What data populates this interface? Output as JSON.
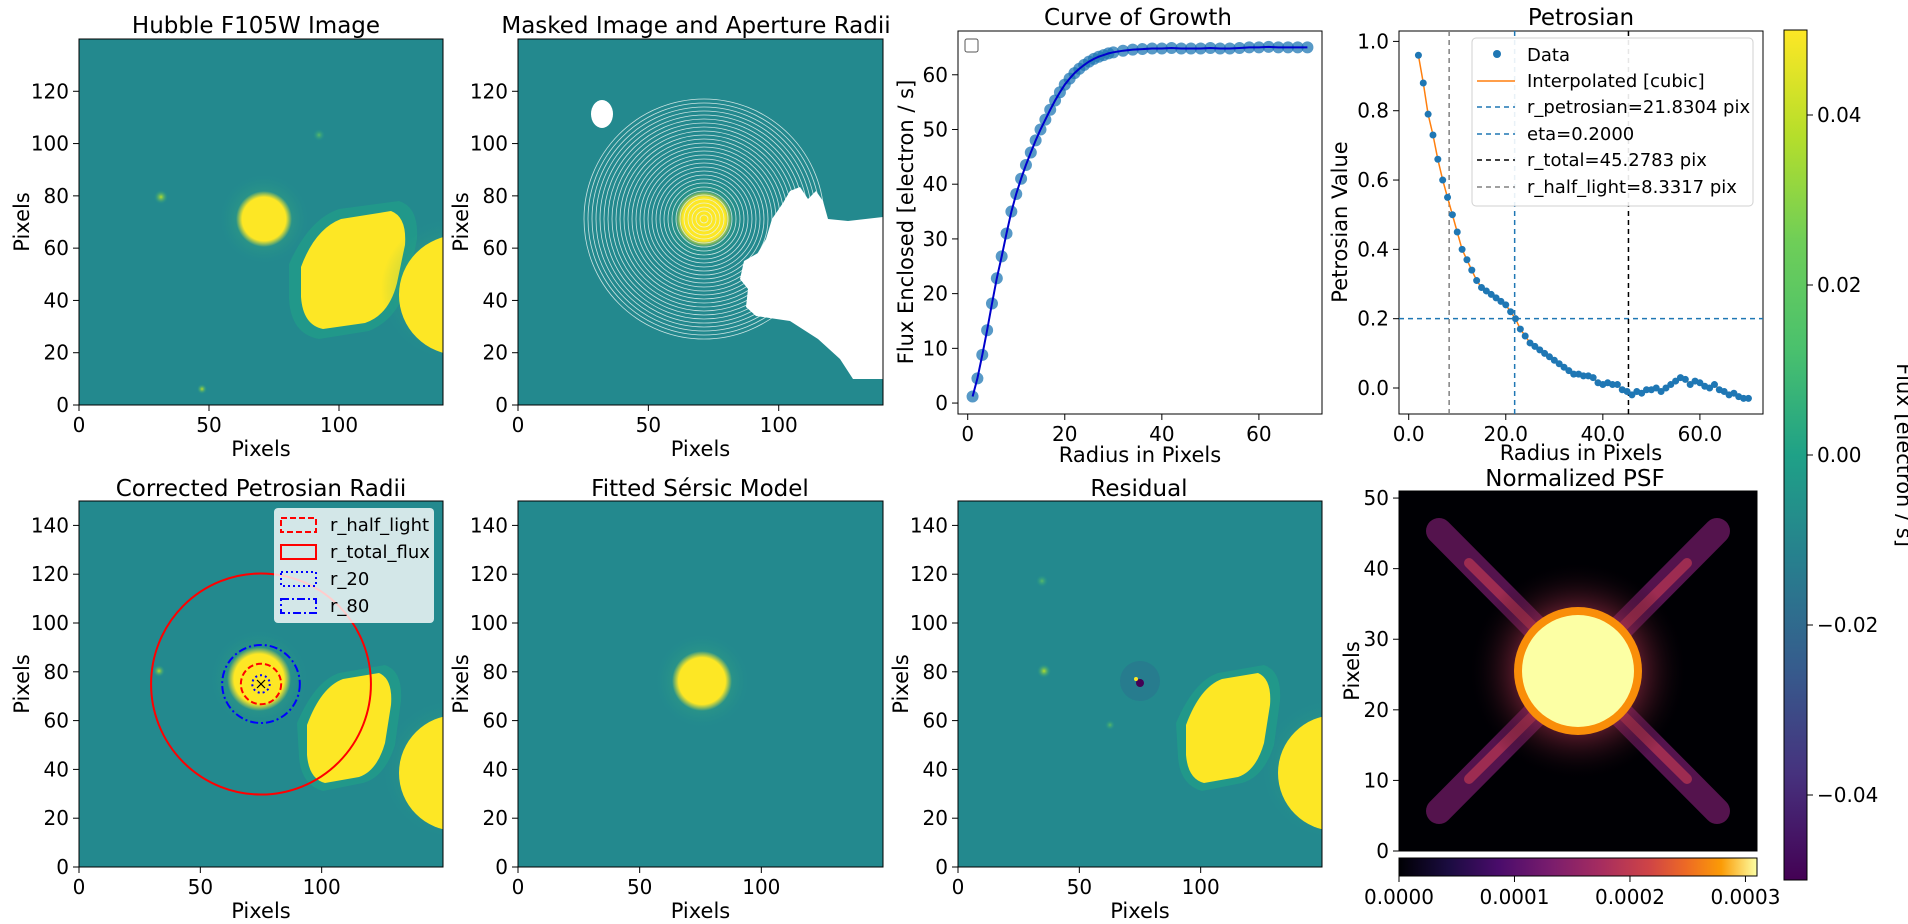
{
  "figure": {
    "colorbar_label": "Flux [electron / s]",
    "colorbar_ticks": [
      "0.04",
      "0.02",
      "0.00",
      "−0.02",
      "−0.04"
    ],
    "colorbar_values": [
      0.04,
      0.02,
      0.0,
      -0.02,
      -0.04
    ],
    "colorbar_range": [
      -0.05,
      0.05
    ],
    "psf_colorbar_ticks": [
      "0.0000",
      "0.0001",
      "0.0002",
      "0.0003"
    ],
    "psf_colorbar_values": [
      0,
      0.0001,
      0.0002,
      0.0003
    ],
    "psf_colorbar_range": [
      0,
      0.00031
    ]
  },
  "chart_data": [
    {
      "id": "p1",
      "type": "heatmap",
      "title": "Hubble F105W Image",
      "xlabel": "Pixels",
      "ylabel": "Pixels",
      "xlim": [
        0,
        140
      ],
      "ylim": [
        0,
        140
      ],
      "xticks": [
        0,
        50,
        100
      ],
      "yticks": [
        0,
        20,
        40,
        60,
        80,
        100,
        120
      ]
    },
    {
      "id": "p2",
      "type": "heatmap",
      "title": "Masked Image and Aperture Radii",
      "xlabel": "Pixels",
      "ylabel": "Pixels",
      "xlim": [
        0,
        140
      ],
      "ylim": [
        0,
        140
      ],
      "xticks": [
        0,
        50,
        100
      ],
      "yticks": [
        0,
        20,
        40,
        60,
        80,
        100,
        120
      ]
    },
    {
      "id": "p3",
      "type": "line",
      "title": "Curve of Growth",
      "xlabel": "Radius in Pixels",
      "ylabel": "Flux Enclosed [electron / s]",
      "xlim": [
        -2,
        73
      ],
      "ylim": [
        -2,
        68
      ],
      "xticks": [
        0,
        20,
        40,
        60
      ],
      "yticks": [
        0,
        10,
        20,
        30,
        40,
        50,
        60
      ],
      "x": [
        1,
        2,
        3,
        4,
        5,
        6,
        7,
        8,
        9,
        10,
        11,
        12,
        13,
        14,
        15,
        16,
        17,
        18,
        19,
        20,
        21,
        22,
        23,
        24,
        25,
        26,
        27,
        28,
        29,
        30,
        32,
        34,
        36,
        38,
        40,
        42,
        44,
        46,
        48,
        50,
        52,
        54,
        56,
        58,
        60,
        62,
        64,
        66,
        68,
        70
      ],
      "y": [
        1.2,
        4.5,
        8.8,
        13.3,
        18.2,
        22.8,
        26.8,
        31.0,
        35.0,
        38.2,
        41.0,
        43.5,
        45.8,
        48.0,
        50.0,
        51.8,
        53.6,
        55.3,
        56.8,
        58.2,
        59.3,
        60.3,
        61.1,
        61.8,
        62.4,
        62.9,
        63.3,
        63.6,
        63.9,
        64.1,
        64.4,
        64.6,
        64.7,
        64.8,
        64.8,
        64.9,
        64.8,
        64.8,
        64.8,
        64.9,
        64.8,
        64.8,
        64.9,
        65.0,
        65.0,
        65.1,
        65.0,
        65.0,
        65.0,
        65.0
      ]
    },
    {
      "id": "p4",
      "type": "line",
      "title": "Petrosian",
      "xlabel": "Radius in Pixels",
      "ylabel": "Petrosian Value",
      "xlim": [
        -2,
        73
      ],
      "ylim": [
        -0.075,
        1.03
      ],
      "xticks": [
        0,
        20,
        40,
        60
      ],
      "yticks": [
        0.0,
        0.2,
        0.4,
        0.6,
        0.8,
        1.0
      ],
      "x": [
        2,
        3,
        4,
        5,
        6,
        7,
        8,
        9,
        10,
        11,
        12,
        13,
        14,
        15,
        16,
        17,
        18,
        19,
        20,
        21,
        22,
        23,
        24,
        25,
        26,
        27,
        28,
        29,
        30,
        31,
        32,
        33,
        34,
        35,
        36,
        37,
        38,
        39,
        40,
        41,
        42,
        43,
        44,
        45,
        46,
        47,
        48,
        49,
        50,
        51,
        52,
        53,
        54,
        55,
        56,
        57,
        58,
        59,
        60,
        61,
        62,
        63,
        64,
        65,
        66,
        67,
        68,
        69,
        70
      ],
      "y": [
        0.96,
        0.88,
        0.79,
        0.73,
        0.66,
        0.6,
        0.55,
        0.5,
        0.45,
        0.4,
        0.37,
        0.34,
        0.31,
        0.29,
        0.28,
        0.27,
        0.26,
        0.25,
        0.24,
        0.22,
        0.2,
        0.17,
        0.15,
        0.13,
        0.12,
        0.11,
        0.1,
        0.09,
        0.08,
        0.07,
        0.06,
        0.05,
        0.04,
        0.04,
        0.035,
        0.035,
        0.03,
        0.015,
        0.01,
        0.015,
        0.01,
        0.01,
        -0.005,
        -0.01,
        -0.02,
        -0.01,
        -0.015,
        -0.005,
        -0.005,
        0.0,
        -0.01,
        0.0,
        0.01,
        0.02,
        0.03,
        0.025,
        0.01,
        0.02,
        0.015,
        0.005,
        0.0,
        0.01,
        -0.005,
        -0.01,
        -0.02,
        -0.015,
        -0.025,
        -0.03,
        -0.03
      ],
      "legend": [
        "Data",
        "Interpolated [cubic]",
        "r_petrosian=21.8304 pix",
        "eta=0.2000",
        "r_total=45.2783 pix",
        "r_half_light=8.3317 pix"
      ],
      "r_petrosian": 21.8304,
      "eta": 0.2,
      "r_total": 45.2783,
      "r_half_light": 8.3317
    },
    {
      "id": "p5",
      "type": "heatmap",
      "title": "Corrected Petrosian Radii",
      "xlabel": "Pixels",
      "ylabel": "Pixels",
      "xlim": [
        0,
        150
      ],
      "ylim": [
        0,
        150
      ],
      "xticks": [
        0,
        50,
        100
      ],
      "yticks": [
        0,
        20,
        40,
        60,
        80,
        100,
        120,
        140
      ],
      "legend": [
        "r_half_light",
        "r_total_flux",
        "r_20",
        "r_80"
      ],
      "center": [
        75,
        75
      ],
      "radii": {
        "r_half_light": 8.3,
        "r_total_flux": 45.3,
        "r_20": 3.6,
        "r_80": 16.0
      }
    },
    {
      "id": "p6",
      "type": "heatmap",
      "title": "Fitted Sérsic Model",
      "xlabel": "Pixels",
      "ylabel": "Pixels",
      "xlim": [
        0,
        150
      ],
      "ylim": [
        0,
        150
      ],
      "xticks": [
        0,
        50,
        100
      ],
      "yticks": [
        0,
        20,
        40,
        60,
        80,
        100,
        120,
        140
      ]
    },
    {
      "id": "p7",
      "type": "heatmap",
      "title": "Residual",
      "xlabel": "Pixels",
      "ylabel": "Pixels",
      "xlim": [
        0,
        150
      ],
      "ylim": [
        0,
        150
      ],
      "xticks": [
        0,
        50,
        100
      ],
      "yticks": [
        0,
        20,
        40,
        60,
        80,
        100,
        120,
        140
      ]
    },
    {
      "id": "p8",
      "type": "heatmap",
      "title": "Normalized PSF",
      "xlabel": "",
      "ylabel": "Pixels",
      "xlim": [
        0,
        51
      ],
      "ylim": [
        0,
        51
      ],
      "xticks": [],
      "yticks": [
        0,
        10,
        20,
        30,
        40,
        50
      ]
    }
  ]
}
